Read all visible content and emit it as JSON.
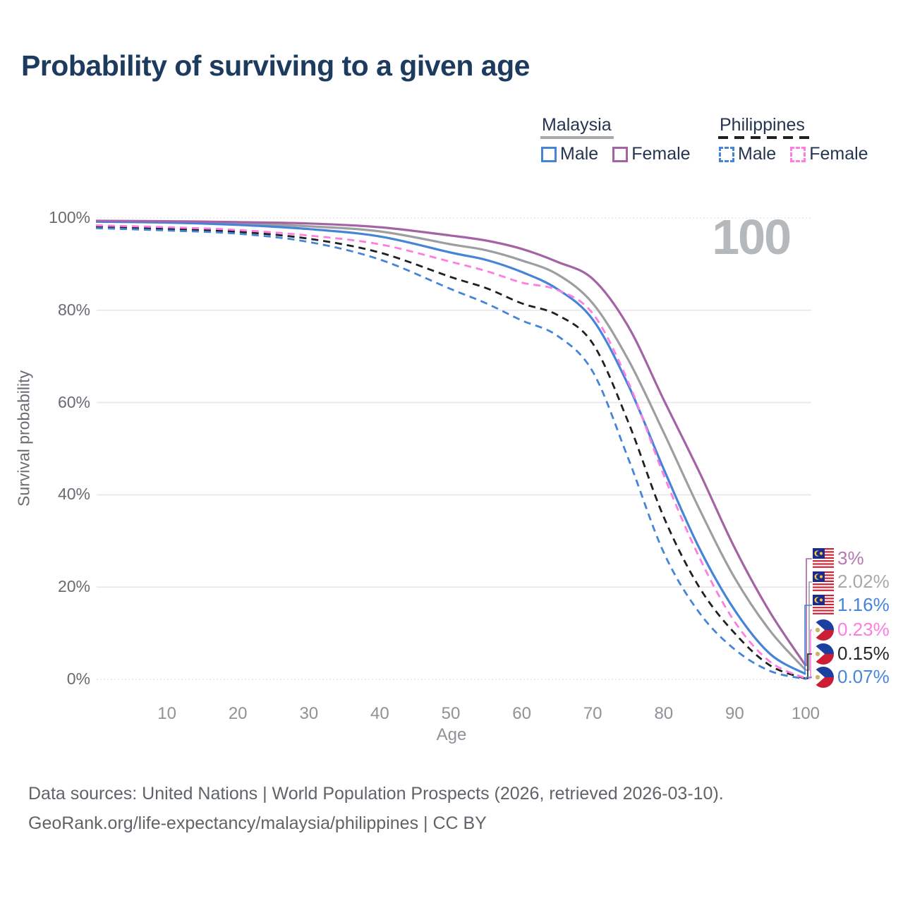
{
  "title": "Probability of surviving to a given age",
  "watermark": "100",
  "colors": {
    "title": "#1d3a5f",
    "malaysia_male": "#4584d6",
    "malaysia_female": "#a463a4",
    "malaysia_all": "#9c9ea1",
    "philippines_male": "#4584d6",
    "philippines_female": "#ff7ce0",
    "philippines_all": "#1e2022",
    "gridline": "#e7e8ea",
    "watermark": "#b6b9bc"
  },
  "legend": {
    "groups": [
      {
        "label": "Malaysia",
        "line_style": "solid",
        "line_color": "#a7a9ac",
        "items": [
          {
            "label": "Male",
            "color": "#4584d6",
            "dashed": false
          },
          {
            "label": "Female",
            "color": "#a463a4",
            "dashed": false
          }
        ]
      },
      {
        "label": "Philippines",
        "line_style": "dashed",
        "line_color": "#1e2022",
        "items": [
          {
            "label": "Male",
            "color": "#4584d6",
            "dashed": true
          },
          {
            "label": "Female",
            "color": "#ff7ce0",
            "dashed": true
          }
        ]
      }
    ]
  },
  "chart_data": {
    "type": "line",
    "title": "Probability of surviving to a given age",
    "xlabel": "Age",
    "ylabel": "Survival probability",
    "xlim": [
      0,
      100
    ],
    "ylim": [
      0,
      100
    ],
    "x_ticks": [
      10,
      20,
      30,
      40,
      50,
      60,
      70,
      80,
      90,
      100
    ],
    "y_ticks": [
      0,
      20,
      40,
      60,
      80,
      100
    ],
    "y_tick_labels": [
      "0%",
      "20%",
      "40%",
      "60%",
      "80%",
      "100%"
    ],
    "grid": true,
    "legend_position": "top-right",
    "ages": [
      0,
      10,
      20,
      30,
      40,
      50,
      55,
      60,
      65,
      70,
      75,
      80,
      85,
      90,
      95,
      100
    ],
    "series": [
      {
        "name": "Malaysia Female",
        "country": "Malaysia",
        "sex": "Female",
        "color": "#a463a4",
        "dashed": false,
        "values": [
          99.4,
          99.3,
          99.1,
          98.8,
          98.0,
          96.2,
          95.1,
          93.3,
          90.5,
          86.8,
          76.5,
          60.6,
          45.0,
          28.5,
          14.5,
          3.0
        ],
        "end_label": "3%",
        "end_label_color": "#b678b2",
        "flag": "malaysia"
      },
      {
        "name": "Malaysia (both sexes)",
        "country": "Malaysia",
        "sex": "All",
        "color": "#9c9ea1",
        "dashed": false,
        "values": [
          99.3,
          99.1,
          98.8,
          98.2,
          97.1,
          94.3,
          93.0,
          90.8,
          87.8,
          81.5,
          69.3,
          53.5,
          37.0,
          22.0,
          10.5,
          2.02
        ],
        "end_label": "2.02%",
        "end_label_color": "#a6a8ab",
        "flag": "malaysia"
      },
      {
        "name": "Malaysia Male",
        "country": "Malaysia",
        "sex": "Male",
        "color": "#4584d6",
        "dashed": false,
        "values": [
          99.2,
          99.0,
          98.5,
          97.6,
          96.0,
          92.5,
          90.9,
          88.3,
          84.6,
          78.0,
          63.8,
          45.6,
          28.5,
          15.0,
          5.5,
          1.16
        ],
        "end_label": "1.16%",
        "end_label_color": "#4584d6",
        "flag": "malaysia"
      },
      {
        "name": "Philippines Female",
        "country": "Philippines",
        "sex": "Female",
        "color": "#ff7ce0",
        "dashed": true,
        "values": [
          98.4,
          98.0,
          97.4,
          96.2,
          94.3,
          90.5,
          88.5,
          86.0,
          84.4,
          79.3,
          64.5,
          44.3,
          26.5,
          12.5,
          3.8,
          0.23
        ],
        "end_label": "0.23%",
        "end_label_color": "#ff7ce0",
        "flag": "philippines"
      },
      {
        "name": "Philippines (both sexes)",
        "country": "Philippines",
        "sex": "All",
        "color": "#1e2022",
        "dashed": true,
        "values": [
          98.1,
          97.6,
          97.0,
          95.5,
          92.5,
          87.2,
          84.8,
          81.5,
          79.0,
          72.8,
          55.8,
          35.2,
          20.0,
          10.0,
          3.0,
          0.15
        ],
        "end_label": "0.15%",
        "end_label_color": "#26282a",
        "flag": "philippines"
      },
      {
        "name": "Philippines Male",
        "country": "Philippines",
        "sex": "Male",
        "color": "#4584d6",
        "dashed": true,
        "values": [
          97.8,
          97.3,
          96.6,
          94.8,
          91.0,
          84.6,
          81.5,
          77.8,
          74.5,
          66.7,
          47.9,
          27.5,
          14.5,
          6.5,
          1.8,
          0.07
        ],
        "end_label": "0.07%",
        "end_label_color": "#4a86d8",
        "flag": "philippines"
      }
    ]
  },
  "footer": {
    "line1": "Data sources: United Nations | World Population Prospects (2026, retrieved 2026-03-10).",
    "line2": "GeoRank.org/life-expectancy/malaysia/philippines | CC BY"
  }
}
